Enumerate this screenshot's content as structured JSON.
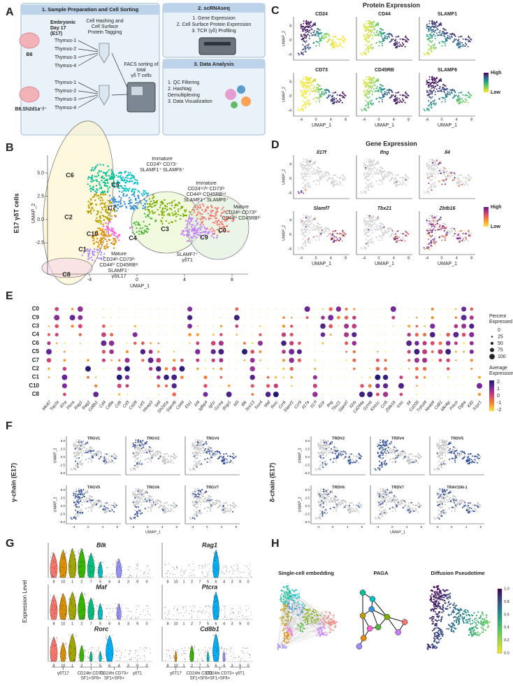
{
  "panel_labels": [
    "A",
    "B",
    "C",
    "D",
    "E",
    "F",
    "G",
    "H"
  ],
  "a": {
    "box1_title": "1. Sample Preparation and Cell Sorting",
    "embryo_label": [
      "Embryonic",
      "Day 17",
      "(E17)"
    ],
    "tagging": [
      "Cell Hashing and",
      "Cell Surface",
      "Protein Tagging"
    ],
    "strain1": "B6",
    "strain2": "B6.Sh2d1a⁻/⁻",
    "thymus": [
      "Thymus-1",
      "Thymus-2",
      "Thymus-3",
      "Thymus-4"
    ],
    "facs": [
      "FACS sorting of",
      "total",
      "γδ T cells"
    ],
    "box2_title": "2. scRNAseq",
    "box2_items": [
      "1. Gene Expression",
      "2. Cell Surface Protein Expression",
      "3. TCR (γδ) Profiling"
    ],
    "box3_title": "3. Data Analysis",
    "box3_items": [
      "1. QC Filtering",
      "2. Hashtag",
      "Demultiplexing",
      "3. Data Visualization"
    ]
  },
  "b": {
    "y_title": "E17 γδT cells",
    "y_label": "UMAP_2",
    "x_label": "UMAP_1",
    "yticks": [
      "5.0",
      "2.5",
      "0.0",
      "-2.5"
    ],
    "xticks": [
      -4,
      0,
      4,
      8
    ],
    "clusters": [
      "C0",
      "C1",
      "C2",
      "C3",
      "C4",
      "C5",
      "C6",
      "C7",
      "C8",
      "C9",
      "C10"
    ],
    "annotations": [
      [
        "Immature",
        "CD24ʰⁱ CD73⁻",
        "SLAMF1⁺ SLAMF6⁺"
      ],
      [
        "Immature",
        "CD24ⁱⁿᵗ/ˡᵒ CD73ˡᵒ",
        "CD44ˡᵒ CD45RBⁱⁿᵗ",
        "SLAMF1⁺ SLAMF6⁺"
      ],
      [
        "Mature",
        "CD24ˡᵒ CD73ʰⁱ",
        "CD44ʰⁱ CD45RBʰⁱ"
      ],
      [
        "SLAMF7⁺",
        "γδT1"
      ],
      [
        "Mature",
        "CD24ˡᵒ CD73ˡᵒ",
        "CD44ʰⁱ CD45RBˡᵒ",
        "SLAMF1⁻",
        "γδIL17"
      ]
    ]
  },
  "c": {
    "title": "Protein Expression",
    "markers": [
      "CD24",
      "CD44",
      "SLAMF1",
      "CD73",
      "CD45RB",
      "SLAMF6"
    ],
    "legend": [
      "High",
      "Low"
    ],
    "y_label": "UMAP_2",
    "x_label": "UMAP_1",
    "yticks": [
      4,
      0,
      -4
    ],
    "xticks": [
      -4,
      0,
      4,
      8
    ]
  },
  "d": {
    "title": "Gene Expression",
    "genes": [
      "Il17f",
      "Ifng",
      "Il4",
      "Slamf7",
      "Tbx21",
      "Zbtb16"
    ],
    "legend": [
      "High",
      "Low"
    ],
    "y_label": "UMAP_2",
    "x_label": "UMAP_1",
    "yticks": [
      4,
      0,
      -4
    ],
    "xticks": [
      -4,
      0,
      4,
      8
    ]
  },
  "e": {
    "clusters": [
      "C0",
      "C9",
      "C3",
      "C4",
      "C6",
      "C5",
      "C7",
      "C2",
      "C1",
      "C10",
      "C8"
    ],
    "genes": [
      "Mki67",
      "Top2a",
      "Il2ra",
      "Ptcra",
      "Rag1",
      "Rag2",
      "Cd8b1",
      "Cd4",
      "Cd8a",
      "Cd5",
      "Cd3",
      "Cd28",
      "Lef1",
      "Hivep3",
      "Sell",
      "Sh2d1a",
      "Slamf6",
      "Cd44",
      "Ets1",
      "Irf4",
      "Igfbp4",
      "Igf1r",
      "Gzma",
      "Ifngr1",
      "Id3",
      "Blk",
      "Sox13",
      "Sox4",
      "Maf",
      "Rorc",
      "Ccr6",
      "Slamf1",
      "Ccr9",
      "Il17a",
      "Il17f",
      "Il23r",
      "Ifng",
      "Tbx21",
      "Slamf7",
      "Il2rb",
      "Cd244a",
      "Gzmb",
      "Klrb1c",
      "Ccl5",
      "Zbtb16",
      "Icos",
      "Il4",
      "Cd200",
      "Tnfrsf4",
      "Nedd4",
      "Cd81",
      "Mki4ip",
      "Prkch",
      "Dgka",
      "Klf2",
      "S1pr1"
    ],
    "size_legend_title": [
      "Percent",
      "Expressed"
    ],
    "size_ticks": [
      0,
      25,
      50,
      75,
      100
    ],
    "color_legend_title": [
      "Average",
      "Expression"
    ],
    "color_ticks": [
      2,
      1,
      0,
      -1,
      -2
    ]
  },
  "f": {
    "gamma": {
      "title": "γ-chain (E17)",
      "genes": [
        "TRGV1",
        "TRGV2",
        "TRGV4",
        "TRGV5",
        "TRGV6",
        "TRGV7"
      ]
    },
    "delta": {
      "title": "δ-chain (E17)",
      "genes": [
        "TRDV2",
        "TRDV4",
        "TRDV5",
        "TRDV6",
        "TRDV7",
        "TRAV15N-1"
      ]
    },
    "x_label": "UMAP_1",
    "y_label": "UMAP_2",
    "yticks": [
      "5.0",
      "2.5",
      "0.0",
      "-2.5",
      "-5.0"
    ],
    "xticks": [
      -4,
      0,
      4,
      8
    ]
  },
  "g": {
    "y_label": "Expression Level",
    "genes_left": [
      "Blk",
      "Maf",
      "Rorc"
    ],
    "genes_right": [
      "Rag1",
      "Ptcra",
      "Cd8b1"
    ],
    "clusters": [
      8,
      10,
      1,
      2,
      7,
      5,
      6,
      4,
      3,
      9,
      0
    ],
    "groups": [
      [
        "γδT17"
      ],
      [
        "CD24hi CD73-",
        "SF1+SF6+"
      ],
      [
        "CD24hi CD73+",
        "SF1+SF6+"
      ],
      [
        "γδT1"
      ]
    ]
  },
  "h": {
    "titles": [
      "Single-cell embedding",
      "PAGA",
      "Diffusion Pseudotime"
    ],
    "colorbar_ticks": [
      "1.0",
      "0.8",
      "0.6",
      "0.4",
      "0.2",
      "0.0"
    ]
  }
}
